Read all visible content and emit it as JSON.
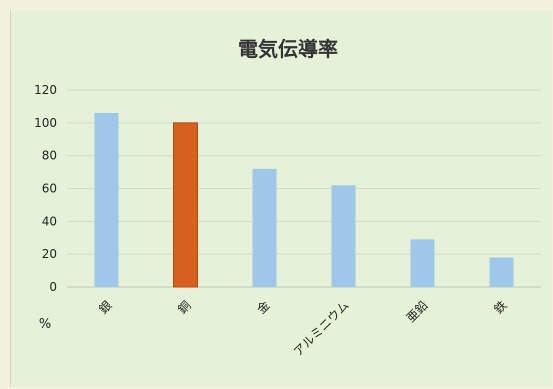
{
  "chart_data": {
    "type": "bar",
    "title": "電気伝導率",
    "unit_label": "%",
    "categories": [
      "銀",
      "銅",
      "金",
      "アルミニウム",
      "亜鉛",
      "鉄"
    ],
    "values": [
      106,
      100,
      72,
      62,
      29,
      18
    ],
    "yticks": [
      0,
      20,
      40,
      60,
      80,
      100,
      120
    ],
    "ylim": [
      0,
      120
    ],
    "grid": true,
    "colors": {
      "default": "#9ec7ea",
      "highlight": "#d8601f",
      "highlight_index": 1,
      "grid": "#cfdcc3",
      "axis": "#bcc8b0"
    }
  }
}
